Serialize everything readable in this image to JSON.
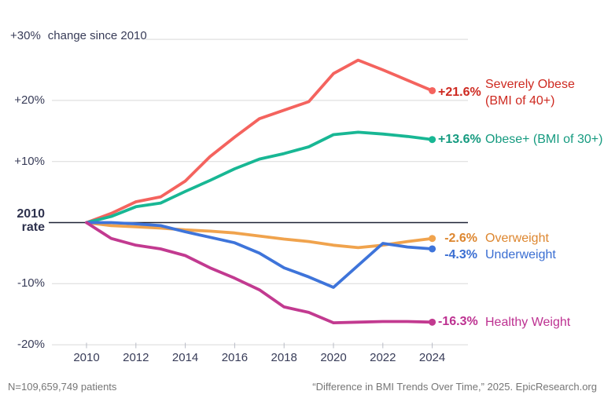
{
  "chart_data": {
    "type": "line",
    "title": "change since 2010",
    "x": [
      2010,
      2011,
      2012,
      2013,
      2014,
      2015,
      2016,
      2017,
      2018,
      2019,
      2020,
      2021,
      2022,
      2023,
      2024
    ],
    "xticks": [
      2010,
      2012,
      2014,
      2016,
      2018,
      2020,
      2022,
      2024
    ],
    "yticks": [
      {
        "value": 30,
        "label": "+30%"
      },
      {
        "value": 20,
        "label": "+20%"
      },
      {
        "value": 10,
        "label": "+10%"
      },
      {
        "value": -10,
        "label": "-10%"
      },
      {
        "value": -20,
        "label": "-20%"
      }
    ],
    "zero_label": [
      "2010",
      "rate"
    ],
    "ylim": [
      -22,
      32
    ],
    "grid": true,
    "legend_position": "right of line ends",
    "series": [
      {
        "id": "severely-obese",
        "name_lines": [
          "Severely Obese",
          "(BMI of 40+)"
        ],
        "end_label": "+21.6%",
        "line_color": "#f4635e",
        "text_color": "#ce2a21",
        "values": [
          0,
          1.5,
          3.4,
          4.2,
          6.8,
          10.8,
          14.0,
          17.0,
          18.4,
          19.8,
          24.4,
          26.6,
          25.0,
          23.3,
          21.6
        ]
      },
      {
        "id": "obese-plus",
        "name_lines": [
          "Obese+ (BMI of 30+)"
        ],
        "end_label": "+13.6%",
        "line_color": "#18b794",
        "text_color": "#169b80",
        "values": [
          0,
          1.0,
          2.6,
          3.2,
          5.1,
          6.9,
          8.8,
          10.4,
          11.3,
          12.4,
          14.4,
          14.8,
          14.5,
          14.1,
          13.6
        ]
      },
      {
        "id": "overweight",
        "name_lines": [
          "Overweight"
        ],
        "end_label": "-2.6%",
        "line_color": "#f0a34d",
        "text_color": "#dd862f",
        "values": [
          0,
          -0.5,
          -0.7,
          -0.9,
          -1.2,
          -1.4,
          -1.7,
          -2.2,
          -2.7,
          -3.1,
          -3.7,
          -4.1,
          -3.7,
          -3.1,
          -2.6
        ]
      },
      {
        "id": "underweight",
        "name_lines": [
          "Underweight"
        ],
        "end_label": "-4.3%",
        "line_color": "#3e74da",
        "text_color": "#3a6ed2",
        "values": [
          0,
          0.0,
          -0.2,
          -0.5,
          -1.5,
          -2.4,
          -3.3,
          -5.0,
          -7.4,
          -8.9,
          -10.6,
          -7.0,
          -3.4,
          -4.0,
          -4.3
        ]
      },
      {
        "id": "healthy-weight",
        "name_lines": [
          "Healthy Weight"
        ],
        "end_label": "-16.3%",
        "line_color": "#c23a90",
        "text_color": "#bd3191",
        "values": [
          0,
          -2.6,
          -3.7,
          -4.3,
          -5.4,
          -7.4,
          -9.1,
          -11.0,
          -13.8,
          -14.7,
          -16.4,
          -16.3,
          -16.2,
          -16.2,
          -16.3
        ]
      }
    ]
  },
  "footer": {
    "left": "N=109,659,749 patients",
    "right": "“Difference in BMI Trends Over Time,” 2025. EpicResearch.org"
  }
}
